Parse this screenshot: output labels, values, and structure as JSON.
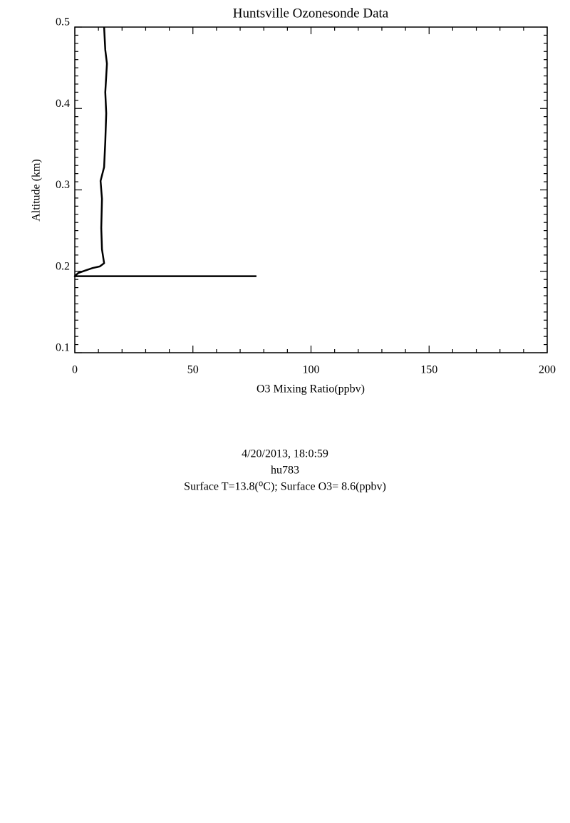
{
  "chart_data": {
    "type": "line",
    "title": "Huntsville Ozonesonde Data",
    "x_label": "O3 Mixing Ratio(ppbv)",
    "y_label": "Altitude (km)",
    "x": [
      76.9,
      0,
      0.3,
      1.5,
      4.5,
      7.5,
      10.6,
      12.4,
      11.5,
      11.2,
      11.5,
      10.9,
      12.4,
      12.9,
      13.3,
      12.9,
      13.6,
      12.9,
      12.4
    ],
    "values": [
      0.194,
      0.194,
      0.195,
      0.198,
      0.201,
      0.204,
      0.206,
      0.21,
      0.227,
      0.253,
      0.289,
      0.311,
      0.328,
      0.359,
      0.394,
      0.42,
      0.455,
      0.472,
      0.5
    ],
    "color": "#000000",
    "xlim": [
      0,
      200
    ],
    "xticks": [
      0,
      50,
      100,
      150,
      200
    ],
    "xminorticks": [
      10,
      20,
      30,
      40,
      60,
      70,
      80,
      90,
      110,
      120,
      130,
      140,
      160,
      170,
      180,
      190
    ],
    "ylim": [
      0.1,
      0.5
    ],
    "yticks": [
      0.1,
      0.2,
      0.3,
      0.4,
      0.5
    ],
    "yminorticks": [
      0.11,
      0.12,
      0.13,
      0.14,
      0.15,
      0.16,
      0.17,
      0.18,
      0.19,
      0.21,
      0.22,
      0.23,
      0.24,
      0.25,
      0.26,
      0.27,
      0.28,
      0.29,
      0.31,
      0.32,
      0.33,
      0.34,
      0.35,
      0.36,
      0.37,
      0.38,
      0.39,
      0.41,
      0.42,
      0.43,
      0.44,
      0.45,
      0.46,
      0.47,
      0.48,
      0.49
    ],
    "grid": false,
    "annotations": [
      "4/20/2013, 18:0:59",
      "hu783",
      "Surface T=13.8(⁰C); Surface O3= 8.6(ppbv)"
    ]
  }
}
